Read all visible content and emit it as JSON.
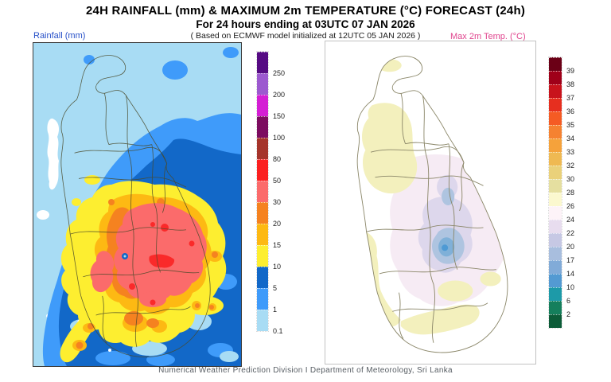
{
  "header": {
    "title": "24H RAINFALL (mm) & MAXIMUM 2m TEMPERATURE (°C) FORECAST (24h)",
    "subtitle": "For 24 hours ending at 03UTC 07 JAN 2026",
    "basis_note": "( Based on ECMWF model initialized at 12UTC 05 JAN 2026 )"
  },
  "rainfall_panel": {
    "label": "Rainfall (mm)",
    "label_color": "#2750c8",
    "legend_bands": [
      {
        "color": "#560b83",
        "label": "250"
      },
      {
        "color": "#9c59cf",
        "label": "200"
      },
      {
        "color": "#d41ed4",
        "label": "150"
      },
      {
        "color": "#7c0c60",
        "label": "100"
      },
      {
        "color": "#a5342b",
        "label": "80"
      },
      {
        "color": "#fb2020",
        "label": "50"
      },
      {
        "color": "#fb6b6b",
        "label": "30"
      },
      {
        "color": "#f58220",
        "label": "20"
      },
      {
        "color": "#fdb913",
        "label": "15"
      },
      {
        "color": "#fdee30",
        "label": "10"
      },
      {
        "color": "#1268c8",
        "label": "5"
      },
      {
        "color": "#3f9bfa",
        "label": "1"
      },
      {
        "color": "#a8dcf4",
        "label": "0.1"
      }
    ]
  },
  "temperature_panel": {
    "label": "Max 2m Temp. (°C)",
    "label_color": "#e0458e",
    "legend_bands": [
      {
        "color": "#6b0016",
        "label": "39"
      },
      {
        "color": "#9f0019",
        "label": "38"
      },
      {
        "color": "#c8131c",
        "label": "37"
      },
      {
        "color": "#e62f1f",
        "label": "36"
      },
      {
        "color": "#f55b24",
        "label": "35"
      },
      {
        "color": "#f58231",
        "label": "34"
      },
      {
        "color": "#f5a23b",
        "label": "33"
      },
      {
        "color": "#efb952",
        "label": "32"
      },
      {
        "color": "#ead17a",
        "label": "30"
      },
      {
        "color": "#e5dfa0",
        "label": "28"
      },
      {
        "color": "#fbf8cf",
        "label": "26"
      },
      {
        "color": "#fdf3f8",
        "label": "24"
      },
      {
        "color": "#e8ddef",
        "label": "22"
      },
      {
        "color": "#c6c8e4",
        "label": "20"
      },
      {
        "color": "#a8bede",
        "label": "17"
      },
      {
        "color": "#81abd8",
        "label": "14"
      },
      {
        "color": "#539ad2",
        "label": "10"
      },
      {
        "color": "#1d9aa8",
        "label": "6"
      },
      {
        "color": "#157f5c",
        "label": "2"
      },
      {
        "color": "#0c5c38",
        "label": null
      }
    ]
  },
  "footer": {
    "credit": "Numerical Weather Prediction Division I Department of Meteorology, Sri Lanka"
  },
  "chart_data": [
    {
      "type": "heatmap",
      "title": "24H Rainfall (mm) forecast map, Sri Lanka",
      "legend_position": "right",
      "scale_values_mm": [
        250,
        200,
        150,
        100,
        80,
        50,
        30,
        20,
        15,
        10,
        5,
        1,
        0.1
      ],
      "summary": "Background 0.1–1 mm over north and west; 1–10 mm over northeast, east and south seas; 10–30 mm ring over the central/southwestern interior with a 30–50 mm core and small 50–80 mm spots; 10–20 mm tail to the southwest coast and smaller 10–20 mm patches in the southeast; near-zero (white) strip on the northwest coast"
    },
    {
      "type": "heatmap",
      "title": "Maximum 2m Temperature (°C) forecast map, Sri Lanka",
      "legend_position": "right",
      "scale_values_c": [
        39,
        38,
        37,
        36,
        35,
        34,
        33,
        32,
        30,
        28,
        26,
        24,
        22,
        20,
        17,
        14,
        10,
        6,
        2
      ],
      "summary": "Mostly 26–28 °C (white); 28–30 °C patches over the northwest, southwest coast and south coast; 22–26 °C pale shading over the wider central region; 17–22 °C over the central highlands with a small 14–17 °C pocket"
    }
  ]
}
